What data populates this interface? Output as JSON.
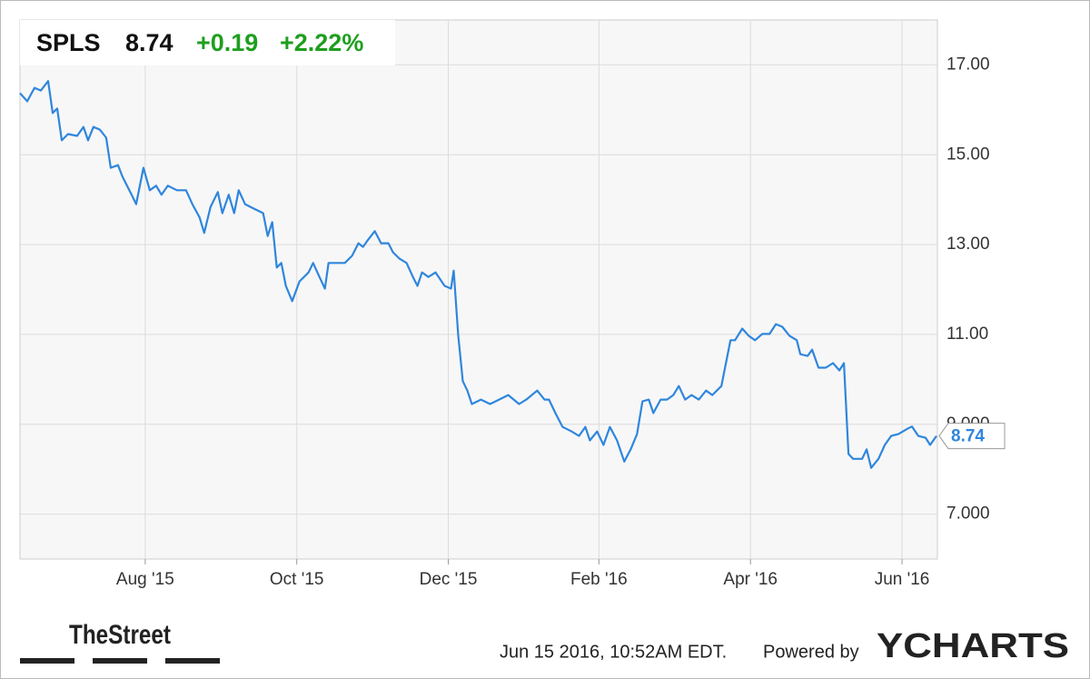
{
  "chart_data": {
    "type": "line",
    "symbol": "SPLS",
    "price": "8.74",
    "change": "+0.19",
    "change_percent": "+2.22%",
    "xlim": [
      2015.445,
      2016.456
    ],
    "ylim": [
      6,
      18
    ],
    "xticks": [
      {
        "value": 2015.583,
        "label": "Aug '15"
      },
      {
        "value": 2015.75,
        "label": "Oct '15"
      },
      {
        "value": 2015.917,
        "label": "Dec '15"
      },
      {
        "value": 2016.083,
        "label": "Feb '16"
      },
      {
        "value": 2016.25,
        "label": "Apr '16"
      },
      {
        "value": 2016.417,
        "label": "Jun '16"
      }
    ],
    "yticks": [
      {
        "value": 7,
        "label": "7.000"
      },
      {
        "value": 9,
        "label": "9.000"
      },
      {
        "value": 11,
        "label": "11.00"
      },
      {
        "value": 13,
        "label": "13.00"
      },
      {
        "value": 15,
        "label": "15.00"
      },
      {
        "value": 17,
        "label": "17.00"
      }
    ],
    "grid": true,
    "series": [
      {
        "name": "SPLS",
        "color": "#2f86dd",
        "x": [
          2015.445,
          2015.453,
          2015.461,
          2015.468,
          2015.476,
          2015.481,
          2015.486,
          2015.491,
          2015.498,
          2015.508,
          2015.515,
          2015.52,
          2015.526,
          2015.533,
          2015.54,
          2015.545,
          2015.553,
          2015.558,
          2015.568,
          2015.573,
          2015.581,
          2015.588,
          2015.595,
          2015.601,
          2015.608,
          2015.618,
          2015.628,
          2015.635,
          2015.643,
          2015.648,
          2015.655,
          2015.663,
          2015.668,
          2015.675,
          2015.681,
          2015.686,
          2015.693,
          2015.703,
          2015.713,
          2015.718,
          2015.723,
          2015.728,
          2015.733,
          2015.738,
          2015.745,
          2015.753,
          2015.763,
          2015.768,
          2015.775,
          2015.781,
          2015.785,
          2015.793,
          2015.803,
          2015.811,
          2015.818,
          2015.823,
          2015.828,
          2015.836,
          2015.843,
          2015.851,
          2015.856,
          2015.863,
          2015.871,
          2015.878,
          2015.883,
          2015.888,
          2015.895,
          2015.903,
          2015.913,
          2015.92,
          2015.923,
          2015.928,
          2015.933,
          2015.938,
          2015.943,
          2015.953,
          2015.963,
          2015.973,
          2015.983,
          2015.995,
          2016.003,
          2016.015,
          2016.023,
          2016.028,
          2016.035,
          2016.043,
          2016.053,
          2016.061,
          2016.068,
          2016.073,
          2016.081,
          2016.088,
          2016.095,
          2016.103,
          2016.111,
          2016.118,
          2016.125,
          2016.131,
          2016.138,
          2016.143,
          2016.151,
          2016.158,
          2016.165,
          2016.171,
          2016.178,
          2016.185,
          2016.193,
          2016.201,
          2016.208,
          2016.218,
          2016.223,
          2016.228,
          2016.233,
          2016.241,
          2016.248,
          2016.255,
          2016.263,
          2016.271,
          2016.278,
          2016.285,
          2016.293,
          2016.301,
          2016.305,
          2016.313,
          2016.318,
          2016.325,
          2016.333,
          2016.341,
          2016.348,
          2016.353,
          2016.358,
          2016.363,
          2016.373,
          2016.378,
          2016.383,
          2016.391,
          2016.398,
          2016.405,
          2016.413,
          2016.423,
          2016.428,
          2016.435,
          2016.443,
          2016.448,
          2016.455
        ],
        "values": [
          16.37,
          16.19,
          16.49,
          16.43,
          16.64,
          15.93,
          16.03,
          15.32,
          15.46,
          15.42,
          15.62,
          15.32,
          15.62,
          15.56,
          15.38,
          14.71,
          14.77,
          14.51,
          14.11,
          13.9,
          14.71,
          14.21,
          14.31,
          14.11,
          14.31,
          14.21,
          14.21,
          13.9,
          13.6,
          13.26,
          13.84,
          14.17,
          13.7,
          14.11,
          13.7,
          14.21,
          13.9,
          13.8,
          13.7,
          13.19,
          13.5,
          12.49,
          12.59,
          12.08,
          11.74,
          12.18,
          12.38,
          12.59,
          12.28,
          12.02,
          12.59,
          12.59,
          12.59,
          12.75,
          13.03,
          12.95,
          13.09,
          13.3,
          13.03,
          13.03,
          12.83,
          12.69,
          12.59,
          12.28,
          12.08,
          12.38,
          12.28,
          12.38,
          12.08,
          12.02,
          12.42,
          10.97,
          9.96,
          9.75,
          9.45,
          9.55,
          9.45,
          9.55,
          9.65,
          9.45,
          9.55,
          9.75,
          9.55,
          9.55,
          9.25,
          8.94,
          8.84,
          8.74,
          8.94,
          8.64,
          8.84,
          8.54,
          8.94,
          8.64,
          8.17,
          8.44,
          8.78,
          9.51,
          9.55,
          9.25,
          9.55,
          9.55,
          9.65,
          9.85,
          9.55,
          9.65,
          9.55,
          9.75,
          9.65,
          9.85,
          10.36,
          10.87,
          10.87,
          11.13,
          10.97,
          10.87,
          11.01,
          11.01,
          11.23,
          11.17,
          10.97,
          10.87,
          10.56,
          10.52,
          10.66,
          10.26,
          10.26,
          10.36,
          10.2,
          10.36,
          8.34,
          8.23,
          8.23,
          8.44,
          8.03,
          8.23,
          8.54,
          8.74,
          8.78,
          8.9,
          8.95,
          8.74,
          8.7,
          8.54,
          8.74
        ]
      }
    ]
  },
  "footer": {
    "logo": "TheStreet",
    "timestamp": "Jun 15 2016, 10:52AM EDT.",
    "powered_by": "Powered by",
    "brand": "YCHARTS"
  }
}
